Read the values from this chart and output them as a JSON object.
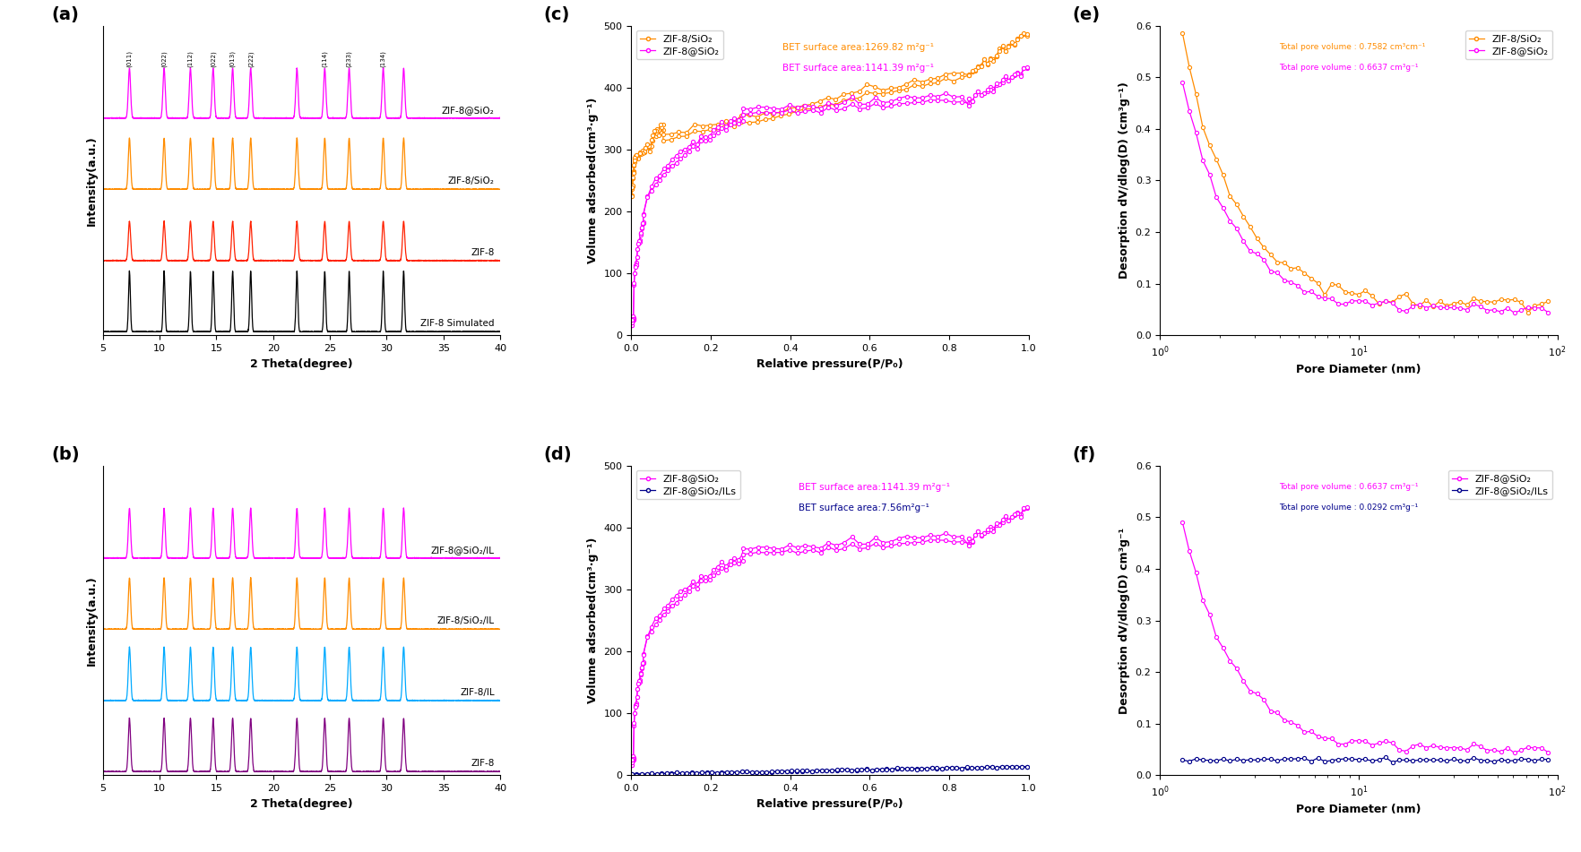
{
  "panel_a": {
    "title": "(a)",
    "xlabel": "2 Theta(degree)",
    "ylabel": "Intensity(a.u.)",
    "xlim": [
      5,
      40
    ],
    "labels": [
      "ZIF-8@SiO₂",
      "ZIF-8/SiO₂",
      "ZIF-8",
      "ZIF-8 Simulated"
    ],
    "colors": [
      "#FF00FF",
      "#FF8C00",
      "#FF2000",
      "#000000"
    ],
    "peak_positions": [
      7.35,
      10.4,
      12.72,
      14.72,
      16.44,
      18.03,
      22.1,
      24.55,
      26.7,
      29.7,
      31.5
    ],
    "peak_labels": [
      "(011)",
      "(022)",
      "(112)",
      "(022)",
      "(013)",
      "(222)",
      "",
      "(114)",
      "(233)",
      "(134)",
      ""
    ],
    "offsets": [
      3.0,
      2.0,
      1.0,
      0.0
    ]
  },
  "panel_b": {
    "title": "(b)",
    "xlabel": "2 Theta(degree)",
    "ylabel": "Intensity(a.u.)",
    "xlim": [
      5,
      40
    ],
    "labels": [
      "ZIF-8@SiO₂/IL",
      "ZIF-8/SiO₂/IL",
      "ZIF-8/IL",
      "ZIF-8"
    ],
    "colors": [
      "#FF00FF",
      "#FF8C00",
      "#00AAFF",
      "#800080"
    ],
    "offsets": [
      3.0,
      2.0,
      1.0,
      0.0
    ]
  },
  "panel_c": {
    "title": "(c)",
    "xlabel": "Relative pressure(P/P₀)",
    "ylabel": "Volume adsorbed(cm³·g⁻¹)",
    "xlim": [
      0,
      1.0
    ],
    "ylim": [
      0,
      500
    ],
    "series": [
      {
        "label": "ZIF-8/SiO₂",
        "bet_label": "BET surface area:1269.82 m²g⁻¹",
        "color": "#FF8C00"
      },
      {
        "label": "ZIF-8@SiO₂",
        "bet_label": "BET surface area:1141.39 m²g⁻¹",
        "color": "#FF00FF"
      }
    ]
  },
  "panel_d": {
    "title": "(d)",
    "xlabel": "Relative pressure(P/P₀)",
    "ylabel": "Volume adsorbed(cm³·g⁻¹)",
    "xlim": [
      0,
      1.0
    ],
    "ylim": [
      0,
      500
    ],
    "series": [
      {
        "label": "ZIF-8@SiO₂",
        "bet_label": "BET surface area:1141.39 m²g⁻¹",
        "color": "#FF00FF"
      },
      {
        "label": "ZIF-8@SiO₂/ILs",
        "bet_label": "BET surface area:7.56m²g⁻¹",
        "color": "#00008B"
      }
    ]
  },
  "panel_e": {
    "title": "(e)",
    "xlabel": "Pore Diameter (nm)",
    "ylabel": "Desorption dV/dlog(D) (cm³g⁻¹)",
    "xlim": [
      1,
      100
    ],
    "ylim": [
      0,
      0.6
    ],
    "series": [
      {
        "label": "ZIF-8/SiO₂",
        "pore_label": "Total pore volume : 0.7582 cm³cm⁻¹",
        "color": "#FF8C00"
      },
      {
        "label": "ZIF-8@SiO₂",
        "pore_label": "Total pore volume : 0.6637 cm³g⁻¹",
        "color": "#FF00FF"
      }
    ]
  },
  "panel_f": {
    "title": "(f)",
    "xlabel": "Pore Diameter (nm)",
    "ylabel": "Desorption dV/dlog(D) cm³g⁻¹",
    "xlim": [
      1,
      100
    ],
    "ylim": [
      0,
      0.6
    ],
    "series": [
      {
        "label": "ZIF-8@SiO₂",
        "pore_label": "Total pore volume : 0.6637 cm³g⁻¹",
        "color": "#FF00FF"
      },
      {
        "label": "ZIF-8@SiO₂/ILs",
        "pore_label": "Total pore volume : 0.0292 cm³g⁻¹",
        "color": "#00008B"
      }
    ]
  }
}
